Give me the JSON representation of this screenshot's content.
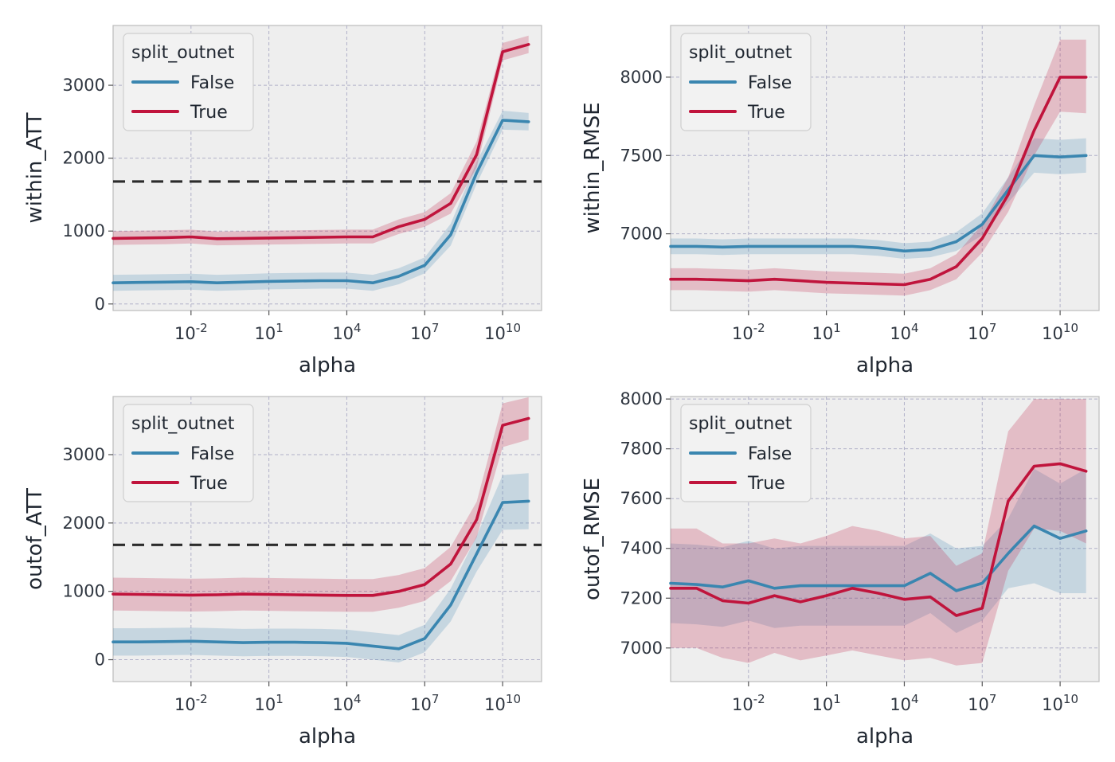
{
  "colors": {
    "False": "#3a86b0",
    "True": "#c0143c"
  },
  "chart_data": [
    {
      "type": "line",
      "xlabel": "alpha",
      "ylabel": "within_ATT",
      "xscale": "log",
      "xlim_exp": [
        -5,
        11.5
      ],
      "ylim": [
        -90,
        3820
      ],
      "yticks": [
        0,
        1000,
        2000,
        3000
      ],
      "xtick_exponents": [
        -2,
        1,
        4,
        7,
        10
      ],
      "reference_line": 1680,
      "legend": {
        "title": "split_outnet",
        "placement": "upper left"
      },
      "series": [
        {
          "name": "False",
          "x_exp": [
            -5,
            -4,
            -3,
            -2,
            -1,
            0,
            1,
            2,
            3,
            4,
            5,
            6,
            7,
            8,
            9,
            10,
            11
          ],
          "y": [
            290,
            295,
            300,
            305,
            290,
            300,
            310,
            315,
            320,
            320,
            290,
            380,
            530,
            950,
            1800,
            2520,
            2500
          ],
          "low": [
            180,
            185,
            190,
            195,
            180,
            190,
            200,
            205,
            210,
            210,
            180,
            270,
            420,
            800,
            1650,
            2390,
            2380
          ],
          "high": [
            400,
            405,
            410,
            415,
            400,
            410,
            420,
            425,
            430,
            430,
            400,
            490,
            640,
            1100,
            1950,
            2650,
            2620
          ]
        },
        {
          "name": "True",
          "x_exp": [
            -5,
            -4,
            -3,
            -2,
            -1,
            0,
            1,
            2,
            3,
            4,
            5,
            6,
            7,
            8,
            9,
            10,
            11
          ],
          "y": [
            900,
            905,
            910,
            920,
            895,
            900,
            905,
            910,
            915,
            920,
            920,
            1060,
            1160,
            1380,
            2050,
            3460,
            3560
          ],
          "low": [
            810,
            815,
            820,
            830,
            805,
            810,
            815,
            820,
            825,
            830,
            830,
            960,
            1060,
            1240,
            1870,
            3340,
            3440
          ],
          "high": [
            1000,
            1005,
            1010,
            1020,
            995,
            1000,
            1005,
            1010,
            1015,
            1020,
            1020,
            1160,
            1260,
            1520,
            2230,
            3580,
            3680
          ]
        }
      ]
    },
    {
      "type": "line",
      "xlabel": "alpha",
      "ylabel": "within_RMSE",
      "xscale": "log",
      "xlim_exp": [
        -5,
        11.5
      ],
      "ylim": [
        6510,
        8330
      ],
      "yticks": [
        7000,
        7500,
        8000
      ],
      "xtick_exponents": [
        -2,
        1,
        4,
        7,
        10
      ],
      "legend": {
        "title": "split_outnet",
        "placement": "upper left"
      },
      "series": [
        {
          "name": "False",
          "x_exp": [
            -5,
            -4,
            -3,
            -2,
            -1,
            0,
            1,
            2,
            3,
            4,
            5,
            6,
            7,
            8,
            9,
            10,
            11
          ],
          "y": [
            6920,
            6920,
            6915,
            6920,
            6920,
            6920,
            6920,
            6920,
            6910,
            6890,
            6900,
            6950,
            7060,
            7280,
            7500,
            7490,
            7500
          ],
          "low": [
            6870,
            6870,
            6865,
            6870,
            6870,
            6870,
            6870,
            6870,
            6860,
            6840,
            6850,
            6890,
            6990,
            7200,
            7390,
            7380,
            7390
          ],
          "high": [
            6970,
            6970,
            6965,
            6970,
            6970,
            6970,
            6970,
            6970,
            6960,
            6940,
            6950,
            7010,
            7130,
            7360,
            7610,
            7600,
            7610
          ]
        },
        {
          "name": "True",
          "x_exp": [
            -5,
            -4,
            -3,
            -2,
            -1,
            0,
            1,
            2,
            3,
            4,
            5,
            6,
            7,
            8,
            9,
            10,
            11
          ],
          "y": [
            6710,
            6710,
            6705,
            6700,
            6710,
            6700,
            6690,
            6685,
            6680,
            6675,
            6710,
            6790,
            6970,
            7250,
            7660,
            8000,
            8000
          ],
          "low": [
            6640,
            6640,
            6635,
            6630,
            6640,
            6630,
            6620,
            6615,
            6610,
            6605,
            6640,
            6710,
            6880,
            7140,
            7500,
            7780,
            7770
          ],
          "high": [
            6780,
            6780,
            6775,
            6770,
            6780,
            6770,
            6760,
            6755,
            6750,
            6745,
            6780,
            6870,
            7060,
            7360,
            7820,
            8240,
            8240
          ]
        }
      ]
    },
    {
      "type": "line",
      "xlabel": "alpha",
      "ylabel": "outof_ATT",
      "xscale": "log",
      "xlim_exp": [
        -5,
        11.5
      ],
      "ylim": [
        -320,
        3850
      ],
      "yticks": [
        0,
        1000,
        2000,
        3000
      ],
      "xtick_exponents": [
        -2,
        1,
        4,
        7,
        10
      ],
      "reference_line": 1680,
      "legend": {
        "title": "split_outnet",
        "placement": "upper left"
      },
      "series": [
        {
          "name": "False",
          "x_exp": [
            -5,
            -4,
            -3,
            -2,
            -1,
            0,
            1,
            2,
            3,
            4,
            5,
            6,
            7,
            8,
            9,
            10,
            11
          ],
          "y": [
            260,
            260,
            265,
            270,
            260,
            250,
            255,
            255,
            250,
            240,
            200,
            160,
            310,
            800,
            1550,
            2300,
            2320
          ],
          "low": [
            60,
            60,
            65,
            70,
            60,
            50,
            55,
            55,
            50,
            40,
            0,
            -40,
            110,
            560,
            1290,
            1900,
            1910
          ],
          "high": [
            460,
            460,
            465,
            470,
            460,
            450,
            455,
            455,
            450,
            440,
            400,
            360,
            510,
            1040,
            1810,
            2700,
            2730
          ]
        },
        {
          "name": "True",
          "x_exp": [
            -5,
            -4,
            -3,
            -2,
            -1,
            0,
            1,
            2,
            3,
            4,
            5,
            6,
            7,
            8,
            9,
            10,
            11
          ],
          "y": [
            960,
            955,
            950,
            945,
            950,
            960,
            955,
            950,
            945,
            940,
            940,
            1000,
            1100,
            1400,
            2050,
            3430,
            3530
          ],
          "low": [
            720,
            715,
            710,
            705,
            710,
            720,
            715,
            710,
            705,
            700,
            700,
            760,
            860,
            1150,
            1790,
            3110,
            3220
          ],
          "high": [
            1200,
            1195,
            1190,
            1185,
            1190,
            1200,
            1195,
            1190,
            1185,
            1180,
            1180,
            1240,
            1340,
            1650,
            2310,
            3750,
            3840
          ]
        }
      ]
    },
    {
      "type": "line",
      "xlabel": "alpha",
      "ylabel": "outof_RMSE",
      "xscale": "log",
      "xlim_exp": [
        -5,
        11.5
      ],
      "ylim": [
        6865,
        8010
      ],
      "yticks": [
        7000,
        7200,
        7400,
        7600,
        7800,
        8000
      ],
      "xtick_exponents": [
        -2,
        1,
        4,
        7,
        10
      ],
      "legend": {
        "title": "split_outnet",
        "placement": "upper left"
      },
      "series": [
        {
          "name": "False",
          "x_exp": [
            -5,
            -4,
            -3,
            -2,
            -1,
            0,
            1,
            2,
            3,
            4,
            5,
            6,
            7,
            8,
            9,
            10,
            11
          ],
          "y": [
            7260,
            7255,
            7245,
            7270,
            7240,
            7250,
            7250,
            7250,
            7250,
            7250,
            7300,
            7230,
            7260,
            7380,
            7490,
            7440,
            7470
          ],
          "low": [
            7100,
            7095,
            7085,
            7110,
            7080,
            7090,
            7090,
            7090,
            7090,
            7090,
            7140,
            7060,
            7110,
            7240,
            7260,
            7220,
            7220
          ],
          "high": [
            7420,
            7415,
            7405,
            7430,
            7400,
            7410,
            7410,
            7410,
            7410,
            7410,
            7460,
            7400,
            7410,
            7520,
            7720,
            7660,
            7720
          ]
        },
        {
          "name": "True",
          "x_exp": [
            -5,
            -4,
            -3,
            -2,
            -1,
            0,
            1,
            2,
            3,
            4,
            5,
            6,
            7,
            8,
            9,
            10,
            11
          ],
          "y": [
            7240,
            7240,
            7190,
            7180,
            7210,
            7185,
            7210,
            7240,
            7220,
            7195,
            7205,
            7130,
            7160,
            7590,
            7730,
            7740,
            7710
          ],
          "low": [
            7000,
            7000,
            6960,
            6940,
            6980,
            6950,
            6970,
            6990,
            6970,
            6950,
            6960,
            6930,
            6940,
            7310,
            7480,
            7470,
            7420
          ],
          "high": [
            7480,
            7480,
            7420,
            7420,
            7440,
            7420,
            7450,
            7490,
            7470,
            7440,
            7450,
            7330,
            7380,
            7870,
            8000,
            8000,
            8000
          ]
        }
      ]
    }
  ]
}
